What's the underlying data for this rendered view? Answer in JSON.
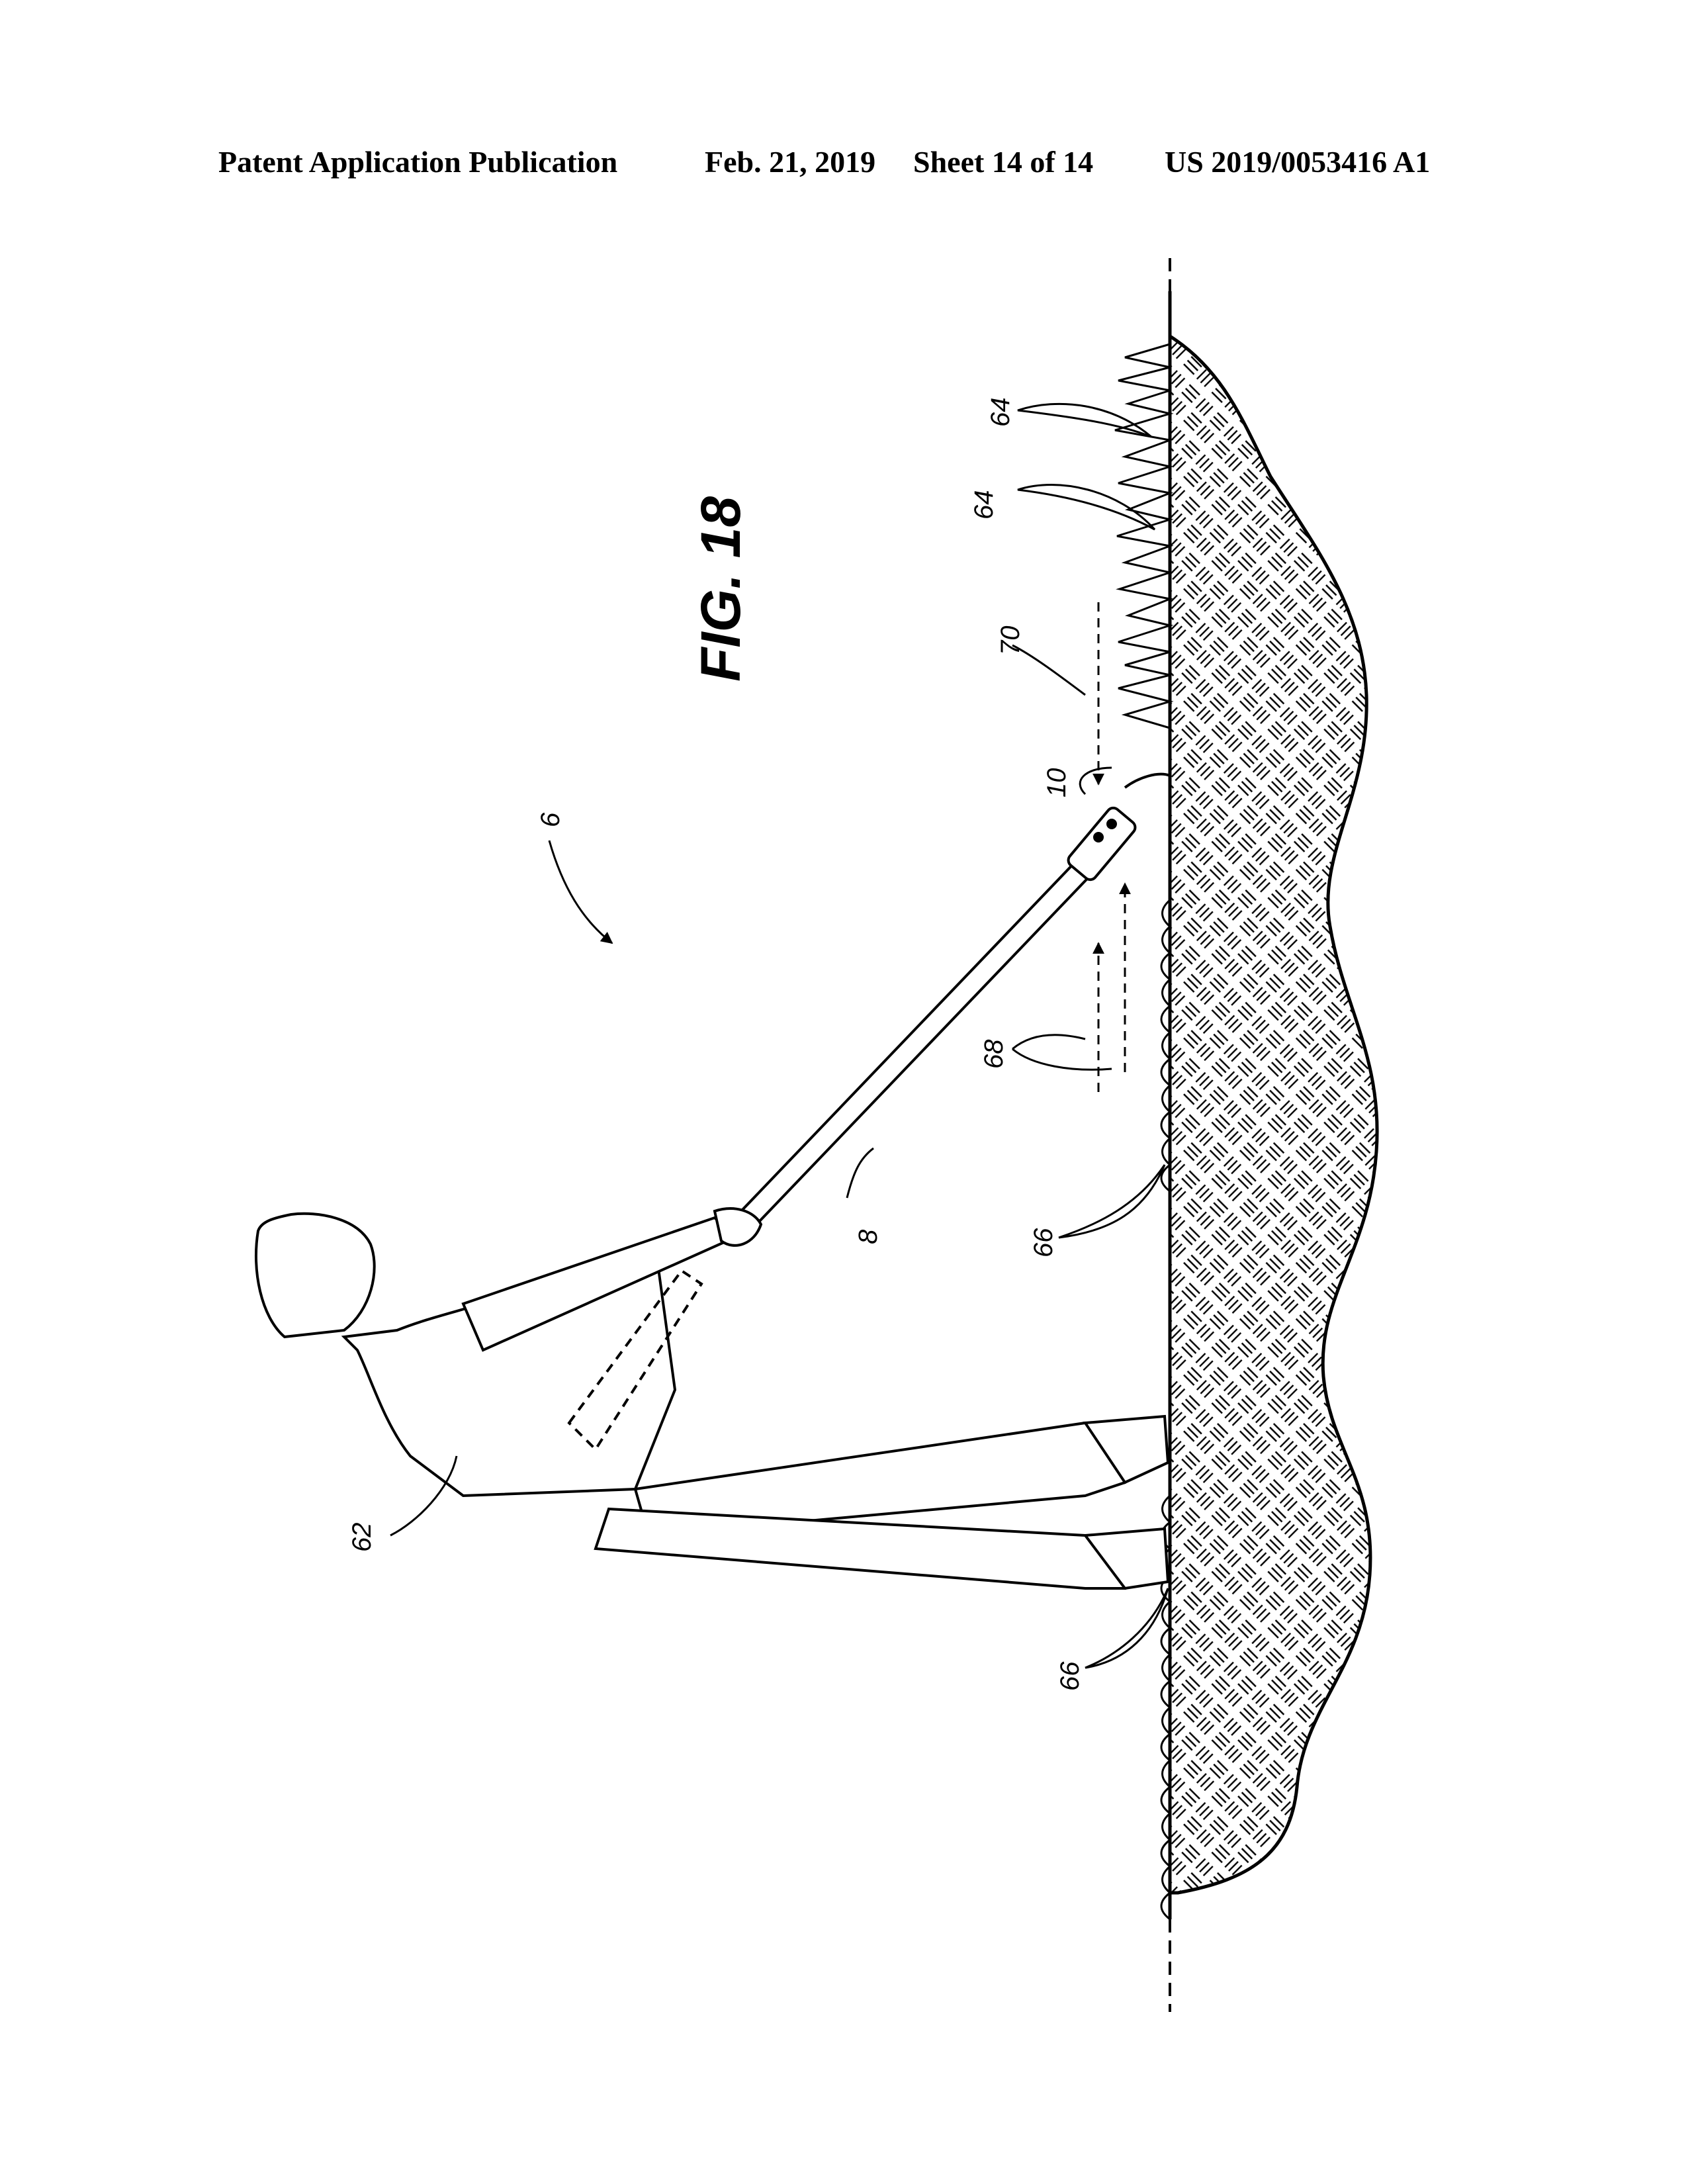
{
  "header": {
    "publication": "Patent Application Publication",
    "date": "Feb. 21, 2019",
    "sheet": "Sheet 14 of 14",
    "number": "US 2019/0053416 A1"
  },
  "figure": {
    "title": "FIG. 18",
    "refs": {
      "assembly": "6",
      "handle": "8",
      "head": "10",
      "operator": "62",
      "tall_grass_1": "64",
      "tall_grass_2": "64",
      "cut_grass_1": "66",
      "cut_grass_2": "66",
      "forward_stroke": "68",
      "return_stroke": "70"
    }
  }
}
